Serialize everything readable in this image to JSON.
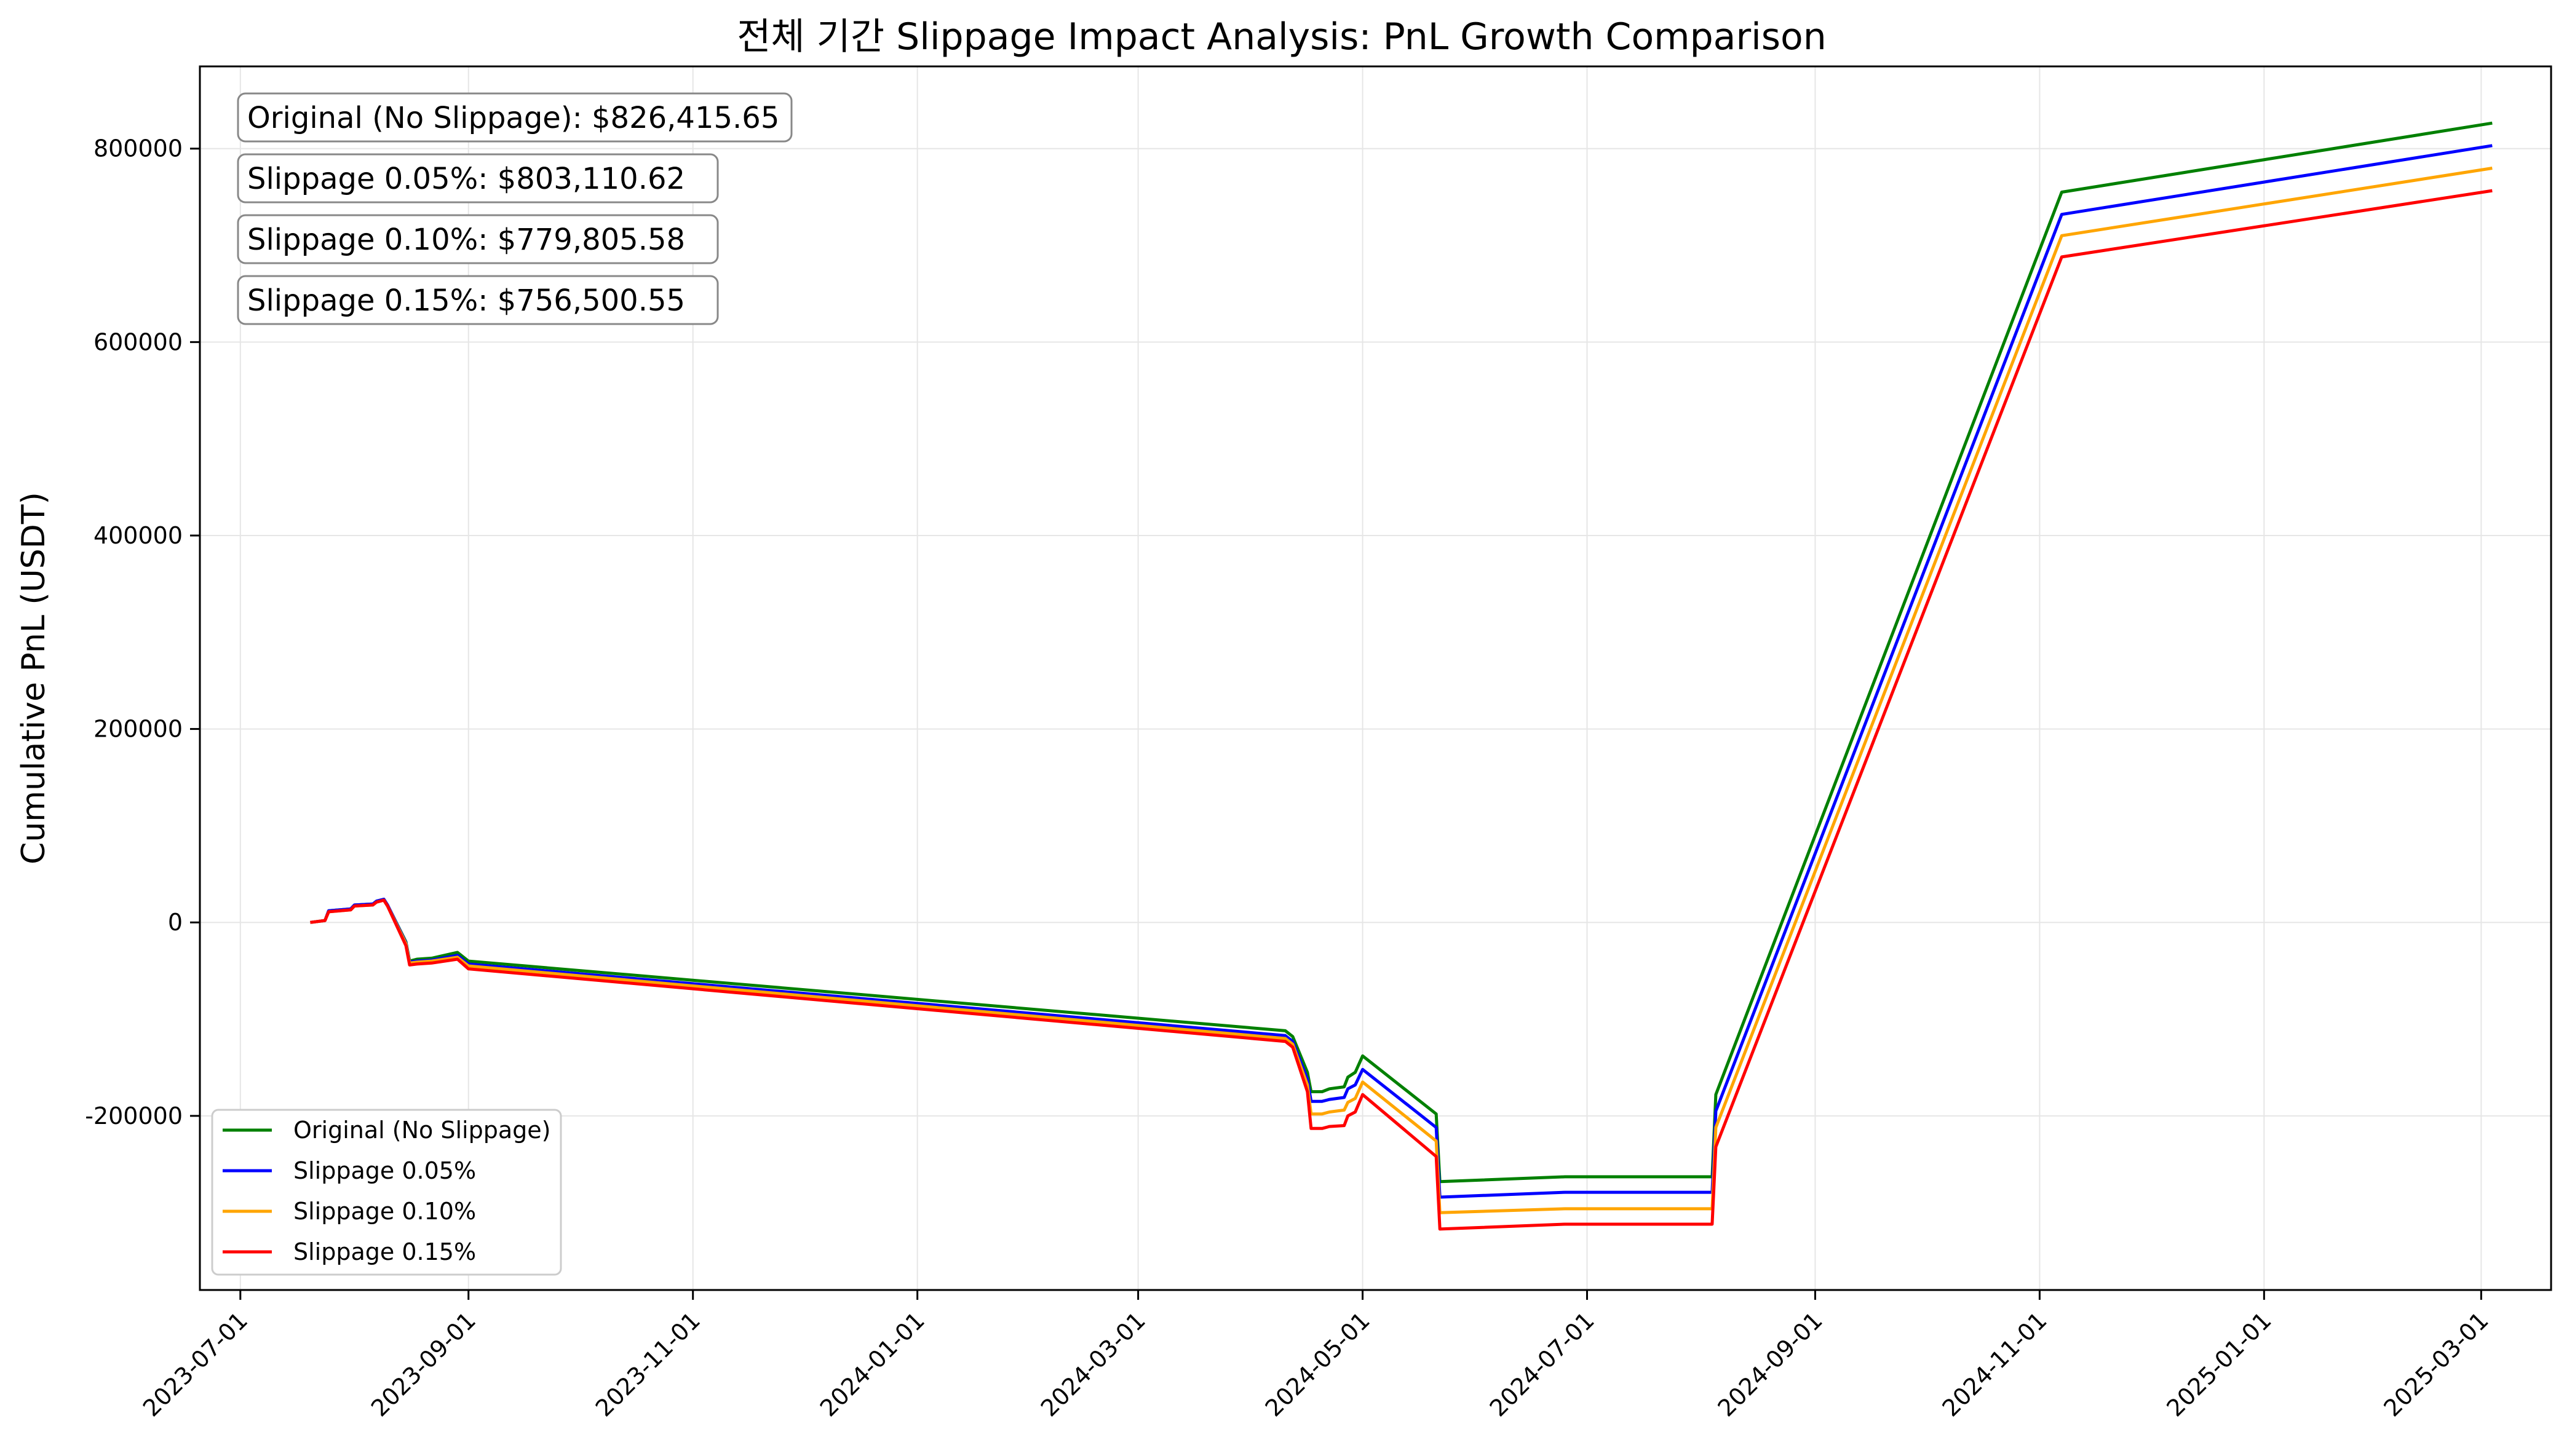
{
  "chart_data": {
    "type": "line",
    "title": "전체 기간 Slippage Impact Analysis: PnL Growth Comparison",
    "xlabel": "",
    "ylabel": "Cumulative PnL (USDT)",
    "x_ticks": [
      "2023-07-01",
      "2023-09-01",
      "2023-11-01",
      "2024-01-01",
      "2024-03-01",
      "2024-05-01",
      "2024-07-01",
      "2024-09-01",
      "2024-11-01",
      "2025-01-01",
      "2025-03-01"
    ],
    "xlim": [
      "2023-06-20",
      "2025-03-20"
    ],
    "y_ticks": [
      -200000,
      0,
      200000,
      400000,
      600000,
      800000
    ],
    "y_tick_labels": [
      "-200000",
      "0",
      "200000",
      "400000",
      "600000",
      "800000"
    ],
    "ylim": [
      -380000,
      885000
    ],
    "grid": true,
    "legend_position": "lower-left",
    "annotations": [
      "Original (No Slippage): $826,415.65",
      "Slippage 0.05%: $803,110.62",
      "Slippage 0.10%: $779,805.58",
      "Slippage 0.15%: $756,500.55"
    ],
    "series": [
      {
        "name": "Original (No Slippage)",
        "color": "#008000",
        "points": [
          [
            "2023-07-20",
            0
          ],
          [
            "2023-07-24",
            2000
          ],
          [
            "2023-07-25",
            12000
          ],
          [
            "2023-07-31",
            14000
          ],
          [
            "2023-08-01",
            18000
          ],
          [
            "2023-08-06",
            19000
          ],
          [
            "2023-08-07",
            22000
          ],
          [
            "2023-08-09",
            24000
          ],
          [
            "2023-08-10",
            18000
          ],
          [
            "2023-08-15",
            -20000
          ],
          [
            "2023-08-16",
            -40000
          ],
          [
            "2023-08-18",
            -38000
          ],
          [
            "2023-08-22",
            -37000
          ],
          [
            "2023-08-29",
            -31000
          ],
          [
            "2023-09-01",
            -40000
          ],
          [
            "2024-04-10",
            -112000
          ],
          [
            "2024-04-12",
            -118000
          ],
          [
            "2024-04-16",
            -155000
          ],
          [
            "2024-04-17",
            -175000
          ],
          [
            "2024-04-20",
            -175000
          ],
          [
            "2024-04-22",
            -172000
          ],
          [
            "2024-04-26",
            -170000
          ],
          [
            "2024-04-27",
            -160000
          ],
          [
            "2024-04-29",
            -155000
          ],
          [
            "2024-05-01",
            -138000
          ],
          [
            "2024-05-21",
            -198000
          ],
          [
            "2024-05-22",
            -268000
          ],
          [
            "2024-06-25",
            -263000
          ],
          [
            "2024-08-04",
            -263000
          ],
          [
            "2024-08-05",
            -178000
          ],
          [
            "2024-11-07",
            755000
          ],
          [
            "2025-03-04",
            826415.65
          ]
        ]
      },
      {
        "name": "Slippage 0.05%",
        "color": "#0000ff",
        "points": [
          [
            "2023-07-20",
            0
          ],
          [
            "2023-07-24",
            2000
          ],
          [
            "2023-07-25",
            12000
          ],
          [
            "2023-07-31",
            14000
          ],
          [
            "2023-08-01",
            18000
          ],
          [
            "2023-08-06",
            19000
          ],
          [
            "2023-08-07",
            22000
          ],
          [
            "2023-08-09",
            24000
          ],
          [
            "2023-08-10",
            18000
          ],
          [
            "2023-08-15",
            -21000
          ],
          [
            "2023-08-16",
            -41000
          ],
          [
            "2023-08-18",
            -40000
          ],
          [
            "2023-08-22",
            -39000
          ],
          [
            "2023-08-29",
            -34000
          ],
          [
            "2023-09-01",
            -43000
          ],
          [
            "2024-04-10",
            -117000
          ],
          [
            "2024-04-12",
            -123000
          ],
          [
            "2024-04-16",
            -162000
          ],
          [
            "2024-04-17",
            -185000
          ],
          [
            "2024-04-20",
            -185000
          ],
          [
            "2024-04-22",
            -183000
          ],
          [
            "2024-04-26",
            -181000
          ],
          [
            "2024-04-27",
            -172000
          ],
          [
            "2024-04-29",
            -168000
          ],
          [
            "2024-05-01",
            -152000
          ],
          [
            "2024-05-21",
            -212000
          ],
          [
            "2024-05-22",
            -284000
          ],
          [
            "2024-06-25",
            -279000
          ],
          [
            "2024-08-04",
            -279000
          ],
          [
            "2024-08-05",
            -195000
          ],
          [
            "2024-11-07",
            732000
          ],
          [
            "2025-03-04",
            803110.62
          ]
        ]
      },
      {
        "name": "Slippage 0.10%",
        "color": "#ffa500",
        "points": [
          [
            "2023-07-20",
            0
          ],
          [
            "2023-07-24",
            2000
          ],
          [
            "2023-07-25",
            11000
          ],
          [
            "2023-07-31",
            13000
          ],
          [
            "2023-08-01",
            17000
          ],
          [
            "2023-08-06",
            18000
          ],
          [
            "2023-08-07",
            21000
          ],
          [
            "2023-08-09",
            23000
          ],
          [
            "2023-08-10",
            17000
          ],
          [
            "2023-08-15",
            -22000
          ],
          [
            "2023-08-16",
            -42000
          ],
          [
            "2023-08-18",
            -41000
          ],
          [
            "2023-08-22",
            -40000
          ],
          [
            "2023-08-29",
            -36000
          ],
          [
            "2023-09-01",
            -45000
          ],
          [
            "2024-04-10",
            -120000
          ],
          [
            "2024-04-12",
            -126000
          ],
          [
            "2024-04-16",
            -168000
          ],
          [
            "2024-04-17",
            -198000
          ],
          [
            "2024-04-20",
            -198000
          ],
          [
            "2024-04-22",
            -196000
          ],
          [
            "2024-04-26",
            -194000
          ],
          [
            "2024-04-27",
            -186000
          ],
          [
            "2024-04-29",
            -182000
          ],
          [
            "2024-05-01",
            -165000
          ],
          [
            "2024-05-21",
            -226000
          ],
          [
            "2024-05-22",
            -300000
          ],
          [
            "2024-06-25",
            -296000
          ],
          [
            "2024-08-04",
            -296000
          ],
          [
            "2024-08-05",
            -212000
          ],
          [
            "2024-11-07",
            710000
          ],
          [
            "2025-03-04",
            779805.58
          ]
        ]
      },
      {
        "name": "Slippage 0.15%",
        "color": "#ff0000",
        "points": [
          [
            "2023-07-20",
            0
          ],
          [
            "2023-07-24",
            2000
          ],
          [
            "2023-07-25",
            11000
          ],
          [
            "2023-07-31",
            13000
          ],
          [
            "2023-08-01",
            17000
          ],
          [
            "2023-08-06",
            18000
          ],
          [
            "2023-08-07",
            21000
          ],
          [
            "2023-08-09",
            23000
          ],
          [
            "2023-08-10",
            17000
          ],
          [
            "2023-08-15",
            -24000
          ],
          [
            "2023-08-16",
            -44000
          ],
          [
            "2023-08-18",
            -43000
          ],
          [
            "2023-08-22",
            -42000
          ],
          [
            "2023-08-29",
            -38000
          ],
          [
            "2023-09-01",
            -48000
          ],
          [
            "2024-04-10",
            -123000
          ],
          [
            "2024-04-12",
            -129000
          ],
          [
            "2024-04-16",
            -175000
          ],
          [
            "2024-04-17",
            -213000
          ],
          [
            "2024-04-20",
            -213000
          ],
          [
            "2024-04-22",
            -211000
          ],
          [
            "2024-04-26",
            -210000
          ],
          [
            "2024-04-27",
            -200000
          ],
          [
            "2024-04-29",
            -196000
          ],
          [
            "2024-05-01",
            -178000
          ],
          [
            "2024-05-21",
            -242000
          ],
          [
            "2024-05-22",
            -317000
          ],
          [
            "2024-06-25",
            -312000
          ],
          [
            "2024-08-04",
            -312000
          ],
          [
            "2024-08-05",
            -232000
          ],
          [
            "2024-11-07",
            688000
          ],
          [
            "2025-03-04",
            756500.55
          ]
        ]
      }
    ]
  }
}
